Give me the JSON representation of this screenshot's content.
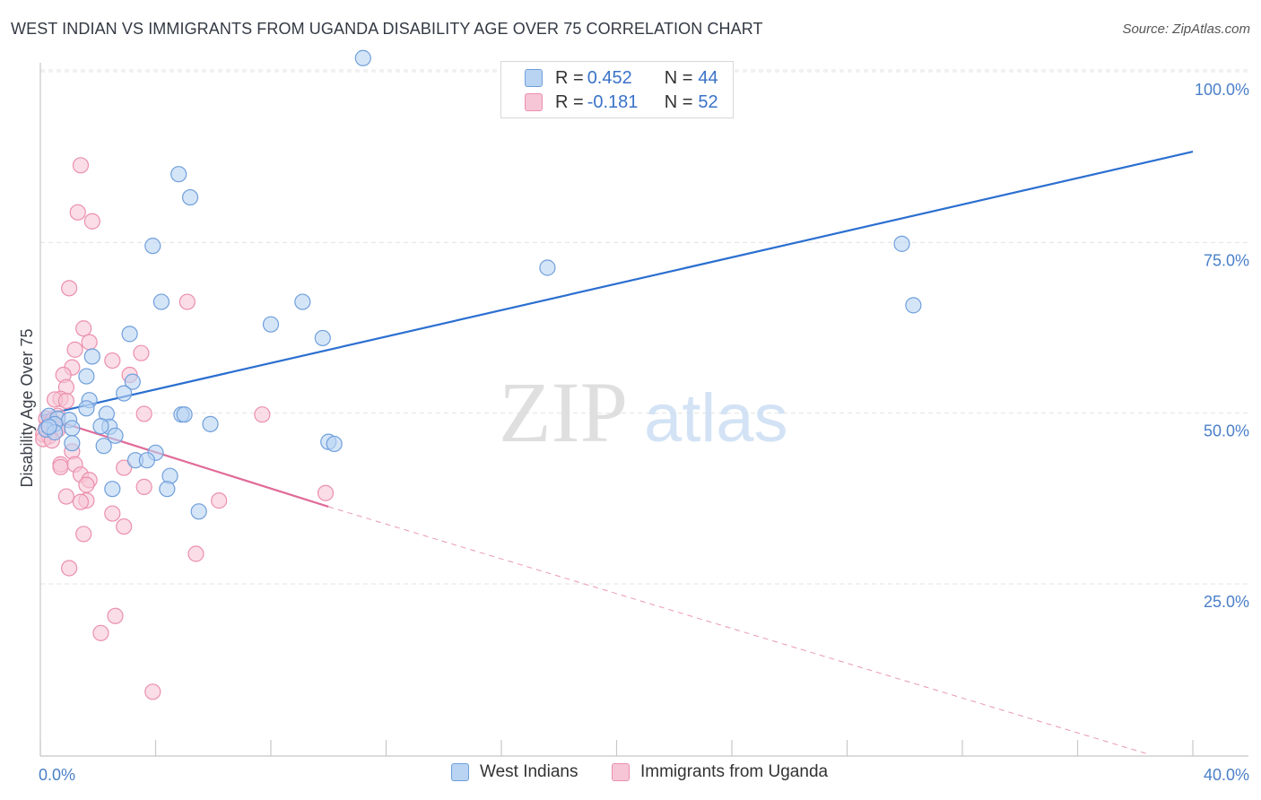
{
  "header": {
    "title": "WEST INDIAN VS IMMIGRANTS FROM UGANDA DISABILITY AGE OVER 75 CORRELATION CHART",
    "source": "Source: ZipAtlas.com"
  },
  "watermark": {
    "zip": "ZIP",
    "atlas": "atlas"
  },
  "legend": {
    "series1": {
      "r_label": "R = ",
      "r_value": "0.452",
      "n_label": "N = ",
      "n_value": "44"
    },
    "series2": {
      "r_label": "R = ",
      "r_value": "-0.181",
      "n_label": "N = ",
      "n_value": "52"
    }
  },
  "colors": {
    "blue_fill": "#b9d3f3",
    "blue_stroke": "#6f9fdb",
    "blue_line": "#2b6fd0",
    "pink_fill": "#f7c6d6",
    "pink_stroke": "#eb8fad",
    "pink_line": "#e06b98",
    "grid": "#e3e3e3",
    "tick_text": "#4a7fc8"
  },
  "chart_data": {
    "type": "scatter",
    "title": "WEST INDIAN VS IMMIGRANTS FROM UGANDA DISABILITY AGE OVER 75 CORRELATION CHART",
    "xlabel": "",
    "ylabel": "Disability Age Over 75",
    "xlim": [
      0,
      40
    ],
    "ylim": [
      0,
      102
    ],
    "x_ticks": [
      "0.0%",
      "40.0%"
    ],
    "y_ticks": [
      {
        "value": 25,
        "label": "25.0%"
      },
      {
        "value": 50,
        "label": "50.0%"
      },
      {
        "value": 75,
        "label": "75.0%"
      },
      {
        "value": 100,
        "label": "100.0%"
      }
    ],
    "series": [
      {
        "name": "West Indians",
        "color": "#b9d3f3",
        "trend": {
          "x": [
            0,
            40
          ],
          "y": [
            49.6,
            88.3
          ],
          "dashed_extension": false
        },
        "points": [
          [
            11.2,
            102.0
          ],
          [
            4.8,
            85.0
          ],
          [
            5.2,
            81.6
          ],
          [
            3.9,
            74.5
          ],
          [
            17.6,
            71.3
          ],
          [
            29.9,
            74.8
          ],
          [
            30.3,
            65.8
          ],
          [
            4.2,
            66.3
          ],
          [
            9.1,
            66.3
          ],
          [
            8.0,
            63.0
          ],
          [
            9.8,
            61.0
          ],
          [
            3.1,
            61.6
          ],
          [
            1.8,
            58.3
          ],
          [
            1.6,
            55.4
          ],
          [
            3.2,
            54.6
          ],
          [
            2.9,
            52.9
          ],
          [
            1.7,
            51.9
          ],
          [
            1.6,
            50.7
          ],
          [
            0.3,
            49.6
          ],
          [
            0.6,
            49.2
          ],
          [
            1.0,
            49.0
          ],
          [
            0.5,
            48.4
          ],
          [
            2.3,
            49.9
          ],
          [
            4.9,
            49.8
          ],
          [
            5.0,
            49.8
          ],
          [
            2.4,
            48.0
          ],
          [
            2.1,
            48.1
          ],
          [
            5.9,
            48.4
          ],
          [
            1.1,
            47.8
          ],
          [
            0.2,
            47.6
          ],
          [
            0.5,
            47.2
          ],
          [
            2.6,
            46.7
          ],
          [
            1.1,
            45.6
          ],
          [
            2.2,
            45.2
          ],
          [
            10.0,
            45.8
          ],
          [
            10.2,
            45.5
          ],
          [
            4.0,
            44.2
          ],
          [
            3.3,
            43.1
          ],
          [
            3.7,
            43.1
          ],
          [
            4.5,
            40.8
          ],
          [
            2.5,
            38.9
          ],
          [
            4.4,
            38.9
          ],
          [
            5.5,
            35.6
          ],
          [
            0.3,
            48.0
          ]
        ]
      },
      {
        "name": "Immigrants from Uganda",
        "color": "#f7c6d6",
        "trend": {
          "x": [
            0,
            10
          ],
          "y": [
            49.6,
            36.3
          ],
          "dashed_to": [
            38.5,
            0
          ]
        },
        "points": [
          [
            1.4,
            86.3
          ],
          [
            1.3,
            79.4
          ],
          [
            1.8,
            78.1
          ],
          [
            1.0,
            68.3
          ],
          [
            5.1,
            66.3
          ],
          [
            1.5,
            62.4
          ],
          [
            1.7,
            60.4
          ],
          [
            1.2,
            59.3
          ],
          [
            3.5,
            58.8
          ],
          [
            2.5,
            57.7
          ],
          [
            1.1,
            56.7
          ],
          [
            0.8,
            55.6
          ],
          [
            3.1,
            55.6
          ],
          [
            0.9,
            53.8
          ],
          [
            0.7,
            52.1
          ],
          [
            0.5,
            52.0
          ],
          [
            0.9,
            51.8
          ],
          [
            3.6,
            49.9
          ],
          [
            7.7,
            49.8
          ],
          [
            0.6,
            49.6
          ],
          [
            0.2,
            49.2
          ],
          [
            0.4,
            48.8
          ],
          [
            0.3,
            48.3
          ],
          [
            0.6,
            48.0
          ],
          [
            0.2,
            47.8
          ],
          [
            0.6,
            47.6
          ],
          [
            0.1,
            46.9
          ],
          [
            0.3,
            46.6
          ],
          [
            0.1,
            46.2
          ],
          [
            0.4,
            46.0
          ],
          [
            1.1,
            44.4
          ],
          [
            0.7,
            42.5
          ],
          [
            0.7,
            42.1
          ],
          [
            1.2,
            42.5
          ],
          [
            2.9,
            42.0
          ],
          [
            1.4,
            41.0
          ],
          [
            1.7,
            40.2
          ],
          [
            1.6,
            39.5
          ],
          [
            3.6,
            39.2
          ],
          [
            0.9,
            37.8
          ],
          [
            1.6,
            37.2
          ],
          [
            1.4,
            37.0
          ],
          [
            6.2,
            37.2
          ],
          [
            9.9,
            38.3
          ],
          [
            2.5,
            35.3
          ],
          [
            2.9,
            33.4
          ],
          [
            1.5,
            32.3
          ],
          [
            5.4,
            29.4
          ],
          [
            1.0,
            27.3
          ],
          [
            2.6,
            20.3
          ],
          [
            2.1,
            17.8
          ],
          [
            3.9,
            9.2
          ]
        ]
      }
    ]
  }
}
